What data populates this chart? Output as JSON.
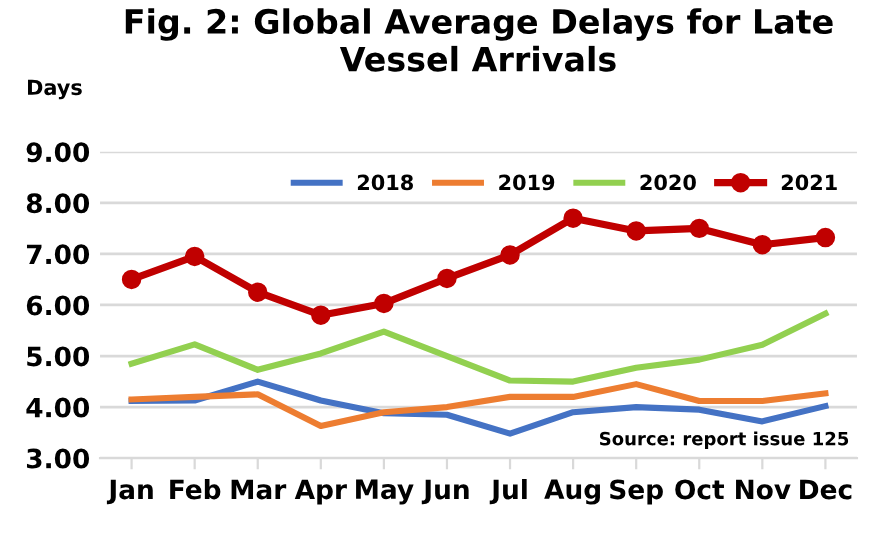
{
  "chart_data": {
    "type": "line",
    "title": "Fig. 2: Global Average Delays for Late Vessel Arrivals",
    "ylabel": "Days",
    "categories": [
      "Jan",
      "Feb",
      "Mar",
      "Apr",
      "May",
      "Jun",
      "Jul",
      "Aug",
      "Sep",
      "Oct",
      "Nov",
      "Dec"
    ],
    "series": [
      {
        "name": "2018",
        "color": "#4472c4",
        "marker": "none",
        "values": [
          4.12,
          4.13,
          4.5,
          4.13,
          3.88,
          3.85,
          3.48,
          3.9,
          4.0,
          3.95,
          3.72,
          4.02
        ]
      },
      {
        "name": "2019",
        "color": "#ed7d31",
        "marker": "none",
        "values": [
          4.15,
          4.2,
          4.25,
          3.63,
          3.9,
          4.0,
          4.2,
          4.2,
          4.45,
          4.12,
          4.12,
          4.27
        ]
      },
      {
        "name": "2020",
        "color": "#92d050",
        "marker": "none",
        "values": [
          4.85,
          5.23,
          4.73,
          5.05,
          5.48,
          5.0,
          4.52,
          4.5,
          4.77,
          4.93,
          5.22,
          5.83
        ]
      },
      {
        "name": "2021",
        "color": "#c00000",
        "marker": "circle",
        "values": [
          6.5,
          6.95,
          6.25,
          5.8,
          6.03,
          6.52,
          6.98,
          7.7,
          7.45,
          7.5,
          7.18,
          7.32
        ]
      }
    ],
    "ylim": [
      3,
      9
    ],
    "yticks": [
      {
        "value": 3,
        "label": "3.00"
      },
      {
        "value": 4,
        "label": "4.00"
      },
      {
        "value": 5,
        "label": "5.00"
      },
      {
        "value": 6,
        "label": "6.00"
      },
      {
        "value": 7,
        "label": "7.00"
      },
      {
        "value": 8,
        "label": "8.00"
      },
      {
        "value": 9,
        "label": "9.00"
      }
    ],
    "grid": "y",
    "legend": "top right",
    "line_style": "solid",
    "annotations": [
      "Source: report issue 125"
    ]
  }
}
